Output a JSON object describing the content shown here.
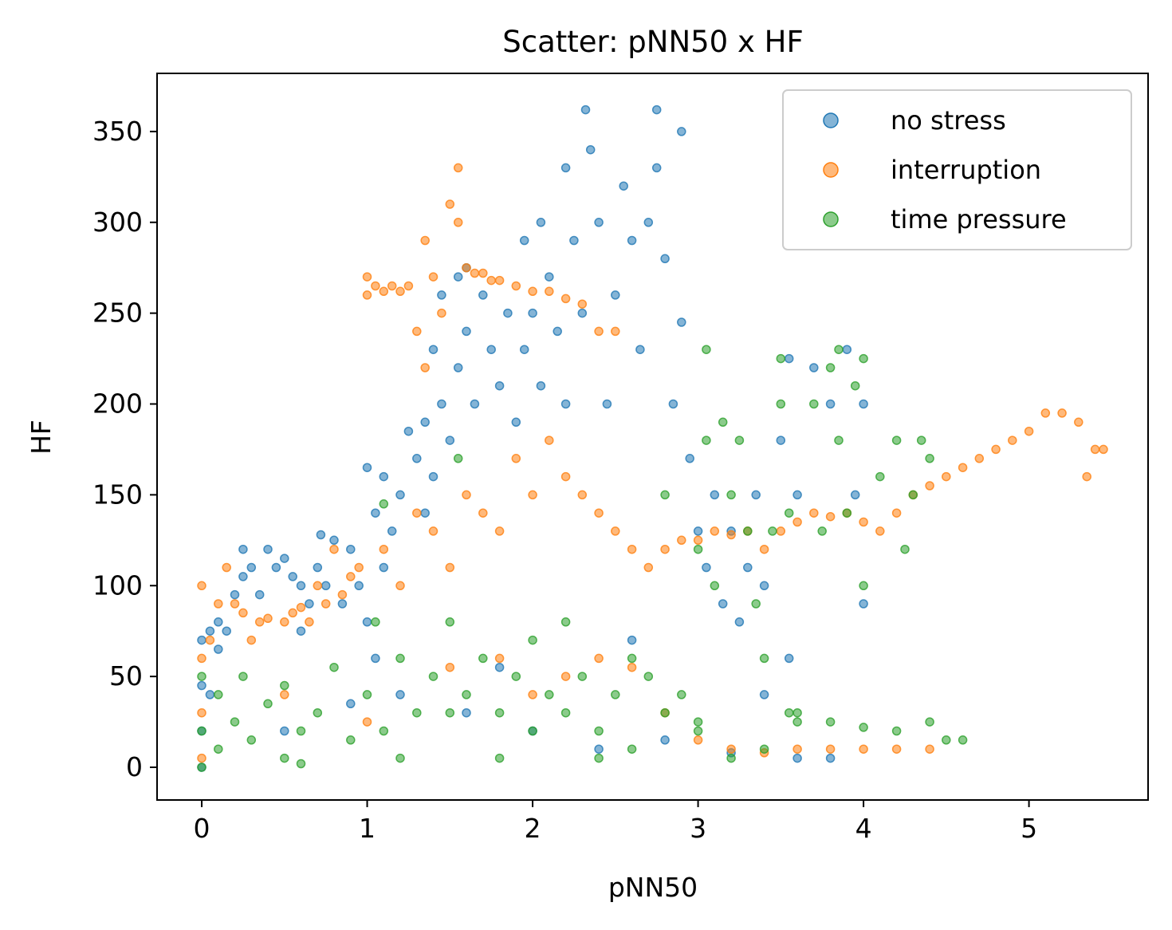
{
  "chart_data": {
    "type": "scatter",
    "title": "Scatter: pNN50 x HF",
    "xlabel": "pNN50",
    "ylabel": "HF",
    "xlim": [
      -0.27,
      5.72
    ],
    "ylim": [
      -18,
      382
    ],
    "xticks": [
      0,
      1,
      2,
      3,
      4,
      5
    ],
    "yticks": [
      0,
      50,
      100,
      150,
      200,
      250,
      300,
      350
    ],
    "grid": false,
    "legend_position": "top-right",
    "series": [
      {
        "name": "no stress",
        "color": "#1f77b4",
        "points": [
          [
            0.0,
            0
          ],
          [
            0.0,
            20
          ],
          [
            0.0,
            45
          ],
          [
            0.0,
            70
          ],
          [
            0.05,
            40
          ],
          [
            0.05,
            75
          ],
          [
            0.1,
            65
          ],
          [
            0.1,
            80
          ],
          [
            0.15,
            75
          ],
          [
            0.2,
            95
          ],
          [
            0.25,
            105
          ],
          [
            0.25,
            120
          ],
          [
            0.3,
            110
          ],
          [
            0.35,
            95
          ],
          [
            0.4,
            120
          ],
          [
            0.45,
            110
          ],
          [
            0.5,
            115
          ],
          [
            0.55,
            105
          ],
          [
            0.6,
            75
          ],
          [
            0.6,
            100
          ],
          [
            0.65,
            90
          ],
          [
            0.7,
            110
          ],
          [
            0.72,
            128
          ],
          [
            0.75,
            100
          ],
          [
            0.8,
            125
          ],
          [
            0.85,
            90
          ],
          [
            0.9,
            120
          ],
          [
            0.95,
            100
          ],
          [
            1.0,
            80
          ],
          [
            1.0,
            165
          ],
          [
            1.05,
            60
          ],
          [
            1.05,
            140
          ],
          [
            1.1,
            110
          ],
          [
            1.1,
            160
          ],
          [
            1.15,
            130
          ],
          [
            1.2,
            150
          ],
          [
            1.25,
            185
          ],
          [
            1.3,
            170
          ],
          [
            1.35,
            140
          ],
          [
            1.35,
            190
          ],
          [
            1.4,
            160
          ],
          [
            1.4,
            230
          ],
          [
            1.45,
            200
          ],
          [
            1.45,
            260
          ],
          [
            1.5,
            180
          ],
          [
            1.55,
            220
          ],
          [
            1.55,
            270
          ],
          [
            1.6,
            240
          ],
          [
            1.6,
            275
          ],
          [
            1.65,
            200
          ],
          [
            1.7,
            260
          ],
          [
            1.75,
            230
          ],
          [
            1.8,
            210
          ],
          [
            1.85,
            250
          ],
          [
            1.9,
            190
          ],
          [
            1.95,
            230
          ],
          [
            1.95,
            290
          ],
          [
            2.0,
            250
          ],
          [
            2.05,
            210
          ],
          [
            2.05,
            300
          ],
          [
            2.1,
            270
          ],
          [
            2.15,
            240
          ],
          [
            2.2,
            330
          ],
          [
            2.2,
            200
          ],
          [
            2.25,
            290
          ],
          [
            2.3,
            250
          ],
          [
            2.32,
            362
          ],
          [
            2.35,
            340
          ],
          [
            2.4,
            300
          ],
          [
            2.45,
            200
          ],
          [
            2.5,
            260
          ],
          [
            2.55,
            320
          ],
          [
            2.6,
            290
          ],
          [
            2.65,
            230
          ],
          [
            2.7,
            300
          ],
          [
            2.75,
            362
          ],
          [
            2.75,
            330
          ],
          [
            2.8,
            280
          ],
          [
            2.85,
            200
          ],
          [
            2.9,
            350
          ],
          [
            2.9,
            245
          ],
          [
            2.95,
            170
          ],
          [
            3.0,
            130
          ],
          [
            3.05,
            110
          ],
          [
            3.1,
            150
          ],
          [
            3.15,
            90
          ],
          [
            3.2,
            130
          ],
          [
            3.25,
            80
          ],
          [
            3.3,
            110
          ],
          [
            3.35,
            150
          ],
          [
            3.4,
            100
          ],
          [
            3.5,
            180
          ],
          [
            3.55,
            225
          ],
          [
            3.55,
            60
          ],
          [
            3.6,
            150
          ],
          [
            3.7,
            220
          ],
          [
            3.8,
            200
          ],
          [
            3.9,
            230
          ],
          [
            3.95,
            150
          ],
          [
            4.0,
            200
          ],
          [
            4.0,
            90
          ],
          [
            1.2,
            40
          ],
          [
            1.6,
            30
          ],
          [
            2.0,
            20
          ],
          [
            2.4,
            10
          ],
          [
            2.8,
            15
          ],
          [
            3.2,
            8
          ],
          [
            3.6,
            5
          ],
          [
            3.8,
            5
          ],
          [
            0.5,
            20
          ],
          [
            0.9,
            35
          ],
          [
            1.8,
            55
          ],
          [
            2.6,
            70
          ],
          [
            3.4,
            40
          ]
        ]
      },
      {
        "name": "interruption",
        "color": "#ff7f0e",
        "points": [
          [
            0.0,
            5
          ],
          [
            0.0,
            30
          ],
          [
            0.0,
            60
          ],
          [
            0.0,
            100
          ],
          [
            0.05,
            70
          ],
          [
            0.1,
            90
          ],
          [
            0.15,
            110
          ],
          [
            0.2,
            90
          ],
          [
            0.25,
            85
          ],
          [
            0.3,
            70
          ],
          [
            0.35,
            80
          ],
          [
            0.4,
            82
          ],
          [
            0.5,
            80
          ],
          [
            0.55,
            85
          ],
          [
            0.6,
            88
          ],
          [
            0.65,
            80
          ],
          [
            0.7,
            100
          ],
          [
            0.75,
            90
          ],
          [
            0.8,
            120
          ],
          [
            0.85,
            95
          ],
          [
            0.9,
            105
          ],
          [
            0.95,
            110
          ],
          [
            1.0,
            270
          ],
          [
            1.0,
            260
          ],
          [
            1.05,
            265
          ],
          [
            1.1,
            262
          ],
          [
            1.15,
            265
          ],
          [
            1.2,
            262
          ],
          [
            1.25,
            265
          ],
          [
            1.3,
            240
          ],
          [
            1.35,
            290
          ],
          [
            1.35,
            220
          ],
          [
            1.4,
            270
          ],
          [
            1.45,
            250
          ],
          [
            1.5,
            310
          ],
          [
            1.55,
            330
          ],
          [
            1.55,
            300
          ],
          [
            1.6,
            275
          ],
          [
            1.65,
            272
          ],
          [
            1.7,
            272
          ],
          [
            1.75,
            268
          ],
          [
            1.8,
            268
          ],
          [
            1.9,
            265
          ],
          [
            2.0,
            262
          ],
          [
            2.1,
            262
          ],
          [
            2.2,
            258
          ],
          [
            2.3,
            255
          ],
          [
            2.4,
            240
          ],
          [
            2.5,
            240
          ],
          [
            1.1,
            120
          ],
          [
            1.2,
            100
          ],
          [
            1.3,
            140
          ],
          [
            1.4,
            130
          ],
          [
            1.5,
            110
          ],
          [
            1.6,
            150
          ],
          [
            1.7,
            140
          ],
          [
            1.8,
            130
          ],
          [
            1.9,
            170
          ],
          [
            2.0,
            150
          ],
          [
            2.1,
            180
          ],
          [
            2.2,
            160
          ],
          [
            2.3,
            150
          ],
          [
            2.4,
            140
          ],
          [
            2.5,
            130
          ],
          [
            2.6,
            120
          ],
          [
            2.7,
            110
          ],
          [
            2.8,
            120
          ],
          [
            2.9,
            125
          ],
          [
            3.0,
            125
          ],
          [
            3.1,
            130
          ],
          [
            3.2,
            128
          ],
          [
            3.3,
            130
          ],
          [
            3.4,
            120
          ],
          [
            3.5,
            130
          ],
          [
            3.6,
            135
          ],
          [
            3.7,
            140
          ],
          [
            3.8,
            138
          ],
          [
            3.9,
            140
          ],
          [
            4.0,
            135
          ],
          [
            4.1,
            130
          ],
          [
            4.2,
            140
          ],
          [
            4.3,
            150
          ],
          [
            4.4,
            155
          ],
          [
            4.5,
            160
          ],
          [
            4.6,
            165
          ],
          [
            4.7,
            170
          ],
          [
            4.8,
            175
          ],
          [
            4.9,
            180
          ],
          [
            5.0,
            185
          ],
          [
            5.1,
            195
          ],
          [
            5.2,
            195
          ],
          [
            5.3,
            190
          ],
          [
            5.4,
            175
          ],
          [
            5.45,
            175
          ],
          [
            5.35,
            160
          ],
          [
            1.8,
            60
          ],
          [
            2.0,
            40
          ],
          [
            2.2,
            50
          ],
          [
            2.4,
            60
          ],
          [
            2.6,
            55
          ],
          [
            2.8,
            30
          ],
          [
            3.0,
            15
          ],
          [
            3.2,
            10
          ],
          [
            3.4,
            8
          ],
          [
            3.6,
            10
          ],
          [
            3.8,
            10
          ],
          [
            4.0,
            10
          ],
          [
            4.2,
            10
          ],
          [
            4.4,
            10
          ],
          [
            0.5,
            40
          ],
          [
            1.0,
            25
          ],
          [
            1.5,
            55
          ]
        ]
      },
      {
        "name": "time pressure",
        "color": "#2ca02c",
        "points": [
          [
            0.0,
            0
          ],
          [
            0.0,
            20
          ],
          [
            0.0,
            50
          ],
          [
            0.1,
            10
          ],
          [
            0.1,
            40
          ],
          [
            0.2,
            25
          ],
          [
            0.25,
            50
          ],
          [
            0.3,
            15
          ],
          [
            0.4,
            35
          ],
          [
            0.5,
            5
          ],
          [
            0.5,
            45
          ],
          [
            0.6,
            20
          ],
          [
            0.7,
            30
          ],
          [
            0.8,
            55
          ],
          [
            0.9,
            15
          ],
          [
            1.0,
            40
          ],
          [
            1.05,
            80
          ],
          [
            1.1,
            145
          ],
          [
            1.1,
            20
          ],
          [
            1.2,
            60
          ],
          [
            1.3,
            30
          ],
          [
            1.4,
            50
          ],
          [
            1.5,
            80
          ],
          [
            1.5,
            30
          ],
          [
            1.55,
            170
          ],
          [
            1.6,
            40
          ],
          [
            1.7,
            60
          ],
          [
            1.8,
            30
          ],
          [
            1.9,
            50
          ],
          [
            2.0,
            70
          ],
          [
            2.0,
            20
          ],
          [
            2.1,
            40
          ],
          [
            2.2,
            80
          ],
          [
            2.2,
            30
          ],
          [
            2.3,
            50
          ],
          [
            2.4,
            20
          ],
          [
            2.5,
            40
          ],
          [
            2.6,
            60
          ],
          [
            2.6,
            10
          ],
          [
            2.7,
            50
          ],
          [
            2.8,
            30
          ],
          [
            2.8,
            150
          ],
          [
            2.9,
            40
          ],
          [
            3.0,
            120
          ],
          [
            3.0,
            20
          ],
          [
            3.05,
            230
          ],
          [
            3.05,
            180
          ],
          [
            3.1,
            100
          ],
          [
            3.15,
            190
          ],
          [
            3.2,
            150
          ],
          [
            3.25,
            180
          ],
          [
            3.3,
            130
          ],
          [
            3.35,
            90
          ],
          [
            3.4,
            60
          ],
          [
            3.45,
            130
          ],
          [
            3.5,
            225
          ],
          [
            3.5,
            200
          ],
          [
            3.55,
            140
          ],
          [
            3.55,
            30
          ],
          [
            3.6,
            30
          ],
          [
            3.7,
            200
          ],
          [
            3.75,
            130
          ],
          [
            3.8,
            220
          ],
          [
            3.85,
            230
          ],
          [
            3.85,
            180
          ],
          [
            3.9,
            140
          ],
          [
            3.95,
            210
          ],
          [
            4.0,
            225
          ],
          [
            4.0,
            100
          ],
          [
            4.1,
            160
          ],
          [
            4.2,
            180
          ],
          [
            4.25,
            120
          ],
          [
            4.3,
            150
          ],
          [
            4.35,
            180
          ],
          [
            4.4,
            170
          ],
          [
            4.4,
            25
          ],
          [
            4.5,
            15
          ],
          [
            4.6,
            15
          ],
          [
            4.2,
            20
          ],
          [
            4.0,
            22
          ],
          [
            3.8,
            25
          ],
          [
            3.6,
            25
          ],
          [
            3.4,
            10
          ],
          [
            3.2,
            5
          ],
          [
            3.0,
            25
          ],
          [
            2.4,
            5
          ],
          [
            1.8,
            5
          ],
          [
            1.2,
            5
          ],
          [
            0.6,
            2
          ]
        ]
      }
    ]
  }
}
